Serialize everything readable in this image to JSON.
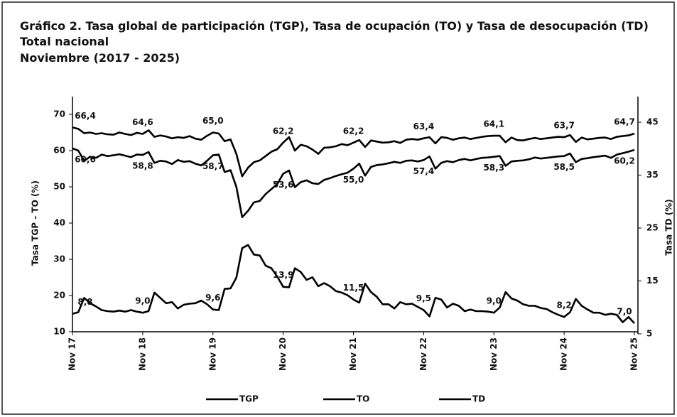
{
  "chart_data": {
    "type": "line",
    "title": [
      "Gráfico 2. Tasa global de participación (TGP), Tasa de ocupación (TO) y Tasa de desocupación (TD)",
      "Total nacional",
      "Noviembre (2017 - 2025)"
    ],
    "ylabel": "Tasa TGP - TO (%)",
    "y2label": "Tasa TD (%)",
    "categories": [
      "Nov 17",
      null,
      null,
      null,
      null,
      null,
      null,
      null,
      null,
      null,
      null,
      null,
      "Nov 18",
      null,
      null,
      null,
      null,
      null,
      null,
      null,
      null,
      null,
      null,
      null,
      "Nov 19",
      null,
      null,
      null,
      null,
      null,
      null,
      null,
      null,
      null,
      null,
      null,
      "Nov 20",
      null,
      null,
      null,
      null,
      null,
      null,
      null,
      null,
      null,
      null,
      null,
      "Nov 21",
      null,
      null,
      null,
      null,
      null,
      null,
      null,
      null,
      null,
      null,
      null,
      "Nov 22",
      null,
      null,
      null,
      null,
      null,
      null,
      null,
      null,
      null,
      null,
      null,
      "Nov 23",
      null,
      null,
      null,
      null,
      null,
      null,
      null,
      null,
      null,
      null,
      null,
      "Nov 24",
      null,
      null,
      null,
      null,
      null,
      null,
      null,
      null,
      null,
      null,
      null,
      "Nov 25"
    ],
    "ylim": [
      10,
      70
    ],
    "yticks": [
      10,
      20,
      30,
      40,
      50,
      60,
      70
    ],
    "y2lim": [
      5,
      45
    ],
    "y2ticks": [
      5,
      15,
      25,
      35,
      45
    ],
    "legend": "bottom",
    "series": [
      {
        "name": "TGP",
        "color": "#000000",
        "values": [
          66.4,
          66.0,
          64.8,
          65.0,
          64.6,
          64.8,
          64.5,
          64.4,
          65.0,
          64.6,
          64.3,
          64.9,
          64.6,
          65.6,
          63.8,
          64.2,
          63.9,
          63.4,
          63.7,
          63.5,
          64.0,
          63.3,
          63.0,
          64.1,
          65.0,
          64.7,
          62.6,
          63.1,
          59.1,
          52.9,
          55.3,
          56.8,
          57.3,
          58.5,
          59.7,
          60.4,
          62.2,
          63.7,
          60.0,
          61.6,
          61.2,
          60.3,
          59.1,
          60.8,
          60.9,
          61.2,
          61.8,
          61.5,
          62.2,
          62.9,
          61.0,
          62.8,
          62.5,
          62.2,
          62.3,
          62.6,
          62.1,
          63.0,
          63.2,
          63.0,
          63.4,
          63.7,
          62.0,
          63.7,
          63.5,
          63.0,
          63.4,
          63.6,
          63.2,
          63.5,
          63.8,
          64.0,
          64.1,
          64.1,
          62.3,
          63.6,
          62.9,
          62.8,
          63.2,
          63.5,
          63.2,
          63.4,
          63.6,
          63.8,
          63.7,
          64.3,
          62.4,
          63.6,
          63.1,
          63.3,
          63.5,
          63.6,
          63.2,
          63.8,
          64.0,
          64.2,
          64.7
        ],
        "value_labels": [
          "66,4",
          null,
          null,
          null,
          null,
          null,
          null,
          null,
          null,
          null,
          null,
          null,
          "64,6",
          null,
          null,
          null,
          null,
          null,
          null,
          null,
          null,
          null,
          null,
          null,
          "65,0",
          null,
          null,
          null,
          null,
          null,
          null,
          null,
          null,
          null,
          null,
          null,
          "62,2",
          null,
          null,
          null,
          null,
          null,
          null,
          null,
          null,
          null,
          null,
          null,
          "62,2",
          null,
          null,
          null,
          null,
          null,
          null,
          null,
          null,
          null,
          null,
          null,
          "63,4",
          null,
          null,
          null,
          null,
          null,
          null,
          null,
          null,
          null,
          null,
          null,
          "64,1",
          null,
          null,
          null,
          null,
          null,
          null,
          null,
          null,
          null,
          null,
          null,
          "63,7",
          null,
          null,
          null,
          null,
          null,
          null,
          null,
          null,
          null,
          null,
          null,
          "64,7"
        ]
      },
      {
        "name": "TO",
        "color": "#000000",
        "values": [
          60.6,
          60.0,
          57.2,
          58.3,
          58.0,
          58.9,
          58.5,
          58.7,
          59.0,
          58.6,
          58.2,
          58.9,
          58.8,
          59.6,
          56.6,
          57.2,
          57.0,
          56.3,
          57.4,
          56.9,
          57.1,
          56.4,
          55.9,
          57.2,
          58.7,
          58.9,
          54.1,
          54.6,
          50.0,
          41.6,
          43.4,
          45.7,
          46.1,
          48.0,
          49.4,
          50.8,
          53.6,
          54.5,
          49.9,
          51.3,
          51.8,
          51.0,
          50.8,
          51.9,
          52.4,
          53.0,
          53.5,
          53.9,
          55.0,
          56.4,
          53.1,
          55.5,
          56.0,
          56.2,
          56.5,
          56.9,
          56.6,
          57.2,
          57.3,
          57.0,
          57.4,
          58.4,
          55.0,
          56.6,
          57.1,
          56.8,
          57.4,
          57.7,
          57.3,
          57.7,
          58.0,
          58.1,
          58.3,
          58.5,
          55.8,
          57.0,
          57.2,
          57.3,
          57.6,
          58.1,
          57.8,
          58.0,
          58.2,
          58.4,
          58.5,
          59.2,
          56.8,
          57.7,
          57.9,
          58.2,
          58.4,
          58.6,
          58.0,
          58.9,
          59.3,
          59.7,
          60.2
        ],
        "value_labels": [
          "60,6",
          null,
          null,
          null,
          null,
          null,
          null,
          null,
          null,
          null,
          null,
          null,
          "58,8",
          null,
          null,
          null,
          null,
          null,
          null,
          null,
          null,
          null,
          null,
          null,
          "58,7",
          null,
          null,
          null,
          null,
          null,
          null,
          null,
          null,
          null,
          null,
          null,
          "53,6",
          null,
          null,
          null,
          null,
          null,
          null,
          null,
          null,
          null,
          null,
          null,
          "55,0",
          null,
          null,
          null,
          null,
          null,
          null,
          null,
          null,
          null,
          null,
          null,
          "57,4",
          null,
          null,
          null,
          null,
          null,
          null,
          null,
          null,
          null,
          null,
          null,
          "58,3",
          null,
          null,
          null,
          null,
          null,
          null,
          null,
          null,
          null,
          null,
          null,
          "58,5",
          null,
          null,
          null,
          null,
          null,
          null,
          null,
          null,
          null,
          null,
          null,
          "60,2"
        ]
      },
      {
        "name": "TD",
        "color": "#000000",
        "axis": "y2",
        "values": [
          8.8,
          9.1,
          11.8,
          10.8,
          10.2,
          9.5,
          9.3,
          9.2,
          9.4,
          9.2,
          9.5,
          9.2,
          9.0,
          9.3,
          12.8,
          11.8,
          10.8,
          11.0,
          9.8,
          10.5,
          10.7,
          10.8,
          11.3,
          10.6,
          9.6,
          9.5,
          13.5,
          13.6,
          15.6,
          21.2,
          21.8,
          20.0,
          19.8,
          17.9,
          17.4,
          15.8,
          13.9,
          13.8,
          17.4,
          16.7,
          15.2,
          15.7,
          14.0,
          14.6,
          14.0,
          13.1,
          12.8,
          12.3,
          11.5,
          10.9,
          14.5,
          12.9,
          12.0,
          10.6,
          10.6,
          9.8,
          11.0,
          10.6,
          10.7,
          10.1,
          9.5,
          8.3,
          11.8,
          11.5,
          10.0,
          10.7,
          10.3,
          9.3,
          9.6,
          9.3,
          9.3,
          9.2,
          9.0,
          10.0,
          12.9,
          11.7,
          11.3,
          10.6,
          10.3,
          10.3,
          9.9,
          9.7,
          9.1,
          8.6,
          8.2,
          9.1,
          11.6,
          10.3,
          9.6,
          9.0,
          9.0,
          8.6,
          8.8,
          8.6,
          7.2,
          8.2,
          7.0
        ],
        "value_labels": [
          "8,8",
          null,
          null,
          null,
          null,
          null,
          null,
          null,
          null,
          null,
          null,
          null,
          "9,0",
          null,
          null,
          null,
          null,
          null,
          null,
          null,
          null,
          null,
          null,
          null,
          "9,6",
          null,
          null,
          null,
          null,
          null,
          null,
          null,
          null,
          null,
          null,
          null,
          "13,9",
          null,
          null,
          null,
          null,
          null,
          null,
          null,
          null,
          null,
          null,
          null,
          "11,5",
          null,
          null,
          null,
          null,
          null,
          null,
          null,
          null,
          null,
          null,
          null,
          "9,5",
          null,
          null,
          null,
          null,
          null,
          null,
          null,
          null,
          null,
          null,
          null,
          "9,0",
          null,
          null,
          null,
          null,
          null,
          null,
          null,
          null,
          null,
          null,
          null,
          "8,2",
          null,
          null,
          null,
          null,
          null,
          null,
          null,
          null,
          null,
          null,
          null,
          "7,0"
        ]
      }
    ]
  }
}
